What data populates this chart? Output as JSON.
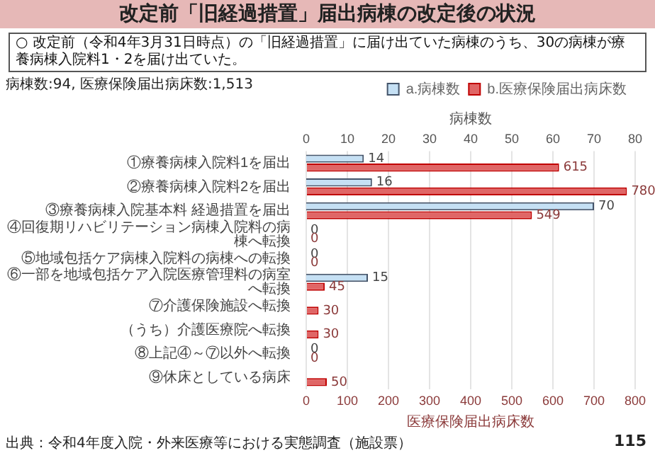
{
  "chart_data": {
    "type": "bar",
    "orientation": "horizontal",
    "title": "改定前「旧経過措置」届出病棟の改定後の状況",
    "subtitle": "○ 改定前（令和4年3月31日時点）の「旧経過措置」に届け出ていた病棟のうち、30の病棟が療養病棟入院料1・2を届け出ていた。",
    "categories": [
      "①療養病棟入院料1を届出",
      "②療養病棟入院料2を届出",
      "③療養病棟入院基本料 経過措置を届出",
      "④回復期リハビリテーション病棟入院料の病棟へ転換",
      "⑤地域包括ケア病棟入院料の病棟への転換",
      "⑥一部を地域包括ケア入院医療管理料の病室へ転換",
      "⑦介護保険施設へ転換",
      "（うち）介護医療院へ転換",
      "⑧上記④～⑦以外へ転換",
      "⑨休床としている病床"
    ],
    "series": [
      {
        "name": "a.病棟数",
        "color": "#c5e0f4",
        "axis": "x2",
        "values": [
          14,
          16,
          70,
          0,
          0,
          15,
          null,
          null,
          0,
          null
        ],
        "value_labels": [
          "14",
          "16",
          "70",
          "0",
          "0",
          "15",
          null,
          null,
          "0",
          null
        ]
      },
      {
        "name": "b.医療保険届出病床数",
        "color": "#e06666",
        "values": [
          615,
          780,
          549,
          0,
          0,
          45,
          30,
          30,
          0,
          50
        ],
        "value_labels": [
          "615",
          "780",
          "549",
          "0",
          "0",
          "45",
          "30",
          "30",
          "0",
          "50"
        ]
      }
    ],
    "xlabel": "医療保険届出病床数",
    "xlim": [
      0,
      800
    ],
    "xticks": [
      0,
      100,
      200,
      300,
      400,
      500,
      600,
      700,
      800
    ],
    "x2label": "病棟数",
    "x2lim": [
      0,
      80
    ],
    "x2ticks": [
      0,
      10,
      20,
      30,
      40,
      50,
      60,
      70,
      80
    ],
    "grid": "x",
    "legend": "top",
    "annotations": [
      "病棟数:94, 医療保険届出病床数:1,513",
      "出典：令和4年度入院・外来医療等における実態調査（施設票）",
      "115"
    ]
  }
}
